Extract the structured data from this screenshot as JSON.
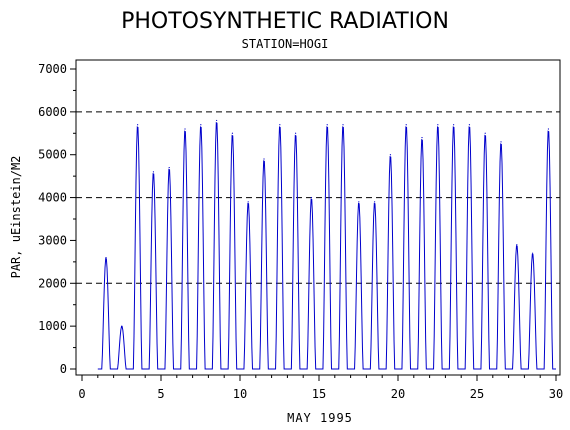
{
  "chart_data": {
    "type": "line",
    "title": "PHOTOSYNTHETIC RADIATION",
    "subtitle": "STATION=HOGI",
    "xlabel": "MAY 1995",
    "ylabel": "PAR, uEinstein/M2",
    "xlim": [
      0,
      30
    ],
    "ylim": [
      0,
      7000
    ],
    "x_ticks": [
      "0",
      "5",
      "10",
      "15",
      "20",
      "25",
      "30"
    ],
    "y_ticks": [
      "0",
      "1000",
      "2000",
      "3000",
      "4000",
      "5000",
      "6000",
      "7000"
    ],
    "reference_lines": [
      2000,
      4000,
      6000
    ],
    "grid": false,
    "line_color": "#0000cc",
    "series": [
      {
        "daily_peaks": [
          {
            "day": 1,
            "peak": 2600
          },
          {
            "day": 2,
            "peak": 1000
          },
          {
            "day": 3,
            "peak": 5700
          },
          {
            "day": 4,
            "peak": 4600
          },
          {
            "day": 5,
            "peak": 4700
          },
          {
            "day": 6,
            "peak": 5600
          },
          {
            "day": 7,
            "peak": 5700
          },
          {
            "day": 8,
            "peak": 5800
          },
          {
            "day": 9,
            "peak": 5500
          },
          {
            "day": 10,
            "peak": 3900
          },
          {
            "day": 11,
            "peak": 4900
          },
          {
            "day": 12,
            "peak": 5700
          },
          {
            "day": 13,
            "peak": 5500
          },
          {
            "day": 14,
            "peak": 4000
          },
          {
            "day": 15,
            "peak": 5700
          },
          {
            "day": 16,
            "peak": 5700
          },
          {
            "day": 17,
            "peak": 3900
          },
          {
            "day": 18,
            "peak": 3900
          },
          {
            "day": 19,
            "peak": 5000
          },
          {
            "day": 20,
            "peak": 5700
          },
          {
            "day": 21,
            "peak": 5400
          },
          {
            "day": 22,
            "peak": 5700
          },
          {
            "day": 23,
            "peak": 5700
          },
          {
            "day": 24,
            "peak": 5700
          },
          {
            "day": 25,
            "peak": 5500
          },
          {
            "day": 26,
            "peak": 5300
          },
          {
            "day": 27,
            "peak": 2900
          },
          {
            "day": 28,
            "peak": 2700
          },
          {
            "day": 29,
            "peak": 5600
          }
        ]
      }
    ]
  }
}
